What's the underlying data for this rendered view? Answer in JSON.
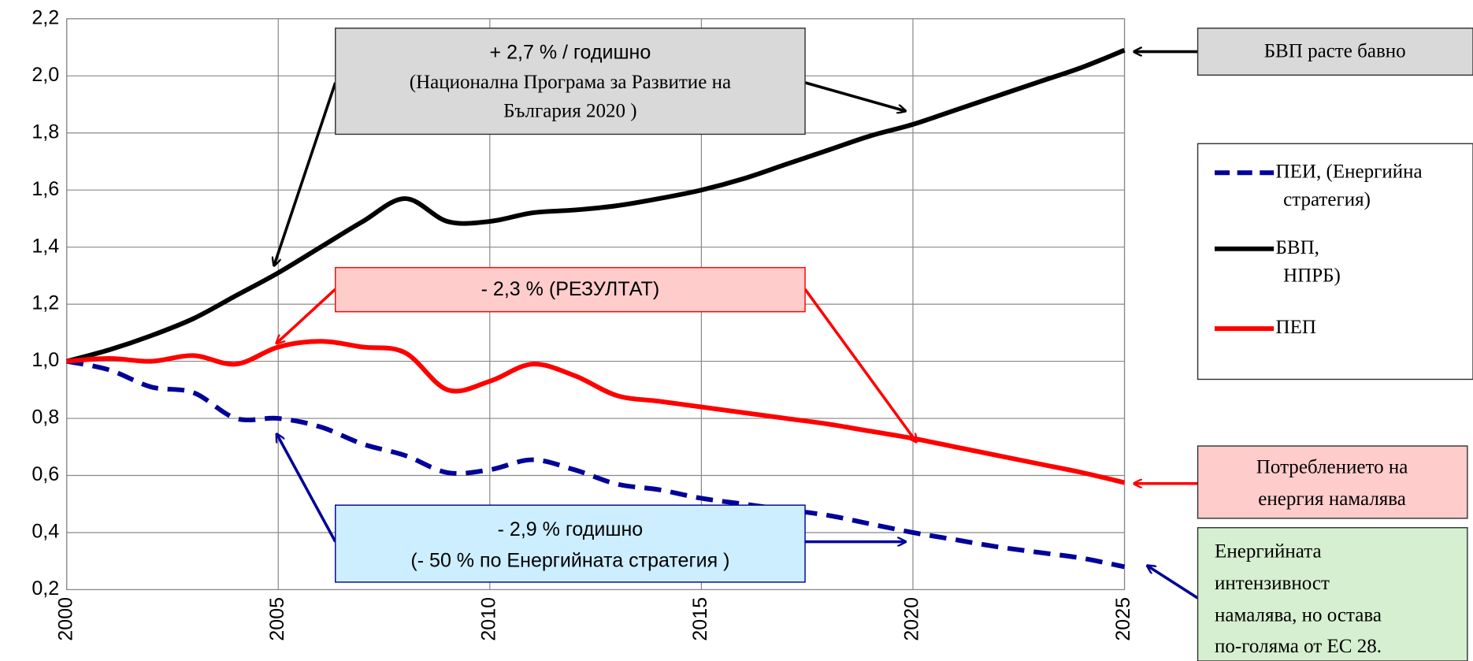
{
  "chart_data": {
    "type": "line",
    "x": [
      2000,
      2001,
      2002,
      2003,
      2004,
      2005,
      2006,
      2007,
      2008,
      2009,
      2010,
      2011,
      2012,
      2013,
      2014,
      2015,
      2016,
      2017,
      2018,
      2019,
      2020,
      2021,
      2022,
      2023,
      2024,
      2025
    ],
    "series": [
      {
        "name": "ПЕИ, (Енергийна стратегия)",
        "color": "#000099",
        "dashed": true,
        "values": [
          1.0,
          0.97,
          0.91,
          0.89,
          0.8,
          0.8,
          0.77,
          0.71,
          0.67,
          0.61,
          0.62,
          0.655,
          0.62,
          0.57,
          0.55,
          0.52,
          0.5,
          0.48,
          0.46,
          0.43,
          0.4,
          0.375,
          0.35,
          0.33,
          0.31,
          0.28
        ]
      },
      {
        "name": "БВП, (НПРБ)",
        "color": "#000000",
        "dashed": false,
        "values": [
          1.0,
          1.04,
          1.09,
          1.15,
          1.23,
          1.31,
          1.4,
          1.49,
          1.57,
          1.49,
          1.49,
          1.52,
          1.53,
          1.545,
          1.57,
          1.6,
          1.64,
          1.69,
          1.74,
          1.79,
          1.83,
          1.88,
          1.93,
          1.98,
          2.03,
          2.09
        ]
      },
      {
        "name": "ПЕП",
        "color": "#ff0000",
        "dashed": false,
        "values": [
          1.0,
          1.01,
          1.0,
          1.02,
          0.99,
          1.05,
          1.07,
          1.05,
          1.03,
          0.9,
          0.93,
          0.99,
          0.95,
          0.88,
          0.86,
          0.84,
          0.82,
          0.8,
          0.78,
          0.755,
          0.73,
          0.7,
          0.67,
          0.64,
          0.61,
          0.575
        ]
      }
    ],
    "xlim": [
      2000,
      2025
    ],
    "xticks": [
      2000,
      2005,
      2010,
      2015,
      2020,
      2025
    ],
    "ylim": [
      0.2,
      2.2
    ],
    "yticks": [
      {
        "value": 0.2,
        "label": "0,2"
      },
      {
        "value": 0.4,
        "label": "0,4"
      },
      {
        "value": 0.6,
        "label": "0,6"
      },
      {
        "value": 0.8,
        "label": "0,8"
      },
      {
        "value": 1.0,
        "label": "1,0"
      },
      {
        "value": 1.2,
        "label": "1,2"
      },
      {
        "value": 1.4,
        "label": "1,4"
      },
      {
        "value": 1.6,
        "label": "1,6"
      },
      {
        "value": 1.8,
        "label": "1,8"
      },
      {
        "value": 2.0,
        "label": "2,0"
      },
      {
        "value": 2.2,
        "label": "2,2"
      }
    ],
    "grid": true,
    "legend": "right",
    "annotations": [
      {
        "lines": [
          "+ 2,7 % / годишно",
          "(Национална Програма за Развитие на",
          "България 2020 )"
        ]
      },
      {
        "lines": [
          "БВП расте бавно"
        ]
      },
      {
        "lines": [
          "- 2,3 %  (РЕЗУЛТАТ)"
        ]
      },
      {
        "lines": [
          "Потреблението на",
          "енергия  намалява"
        ]
      },
      {
        "lines": [
          "-   2,9 % годишно",
          "(- 50 %  по Енергийната стратегия )"
        ]
      },
      {
        "lines": [
          "Енергийната",
          "интензивност",
          "намалява, но остава",
          "по-голяма от ЕС 28."
        ]
      }
    ]
  }
}
